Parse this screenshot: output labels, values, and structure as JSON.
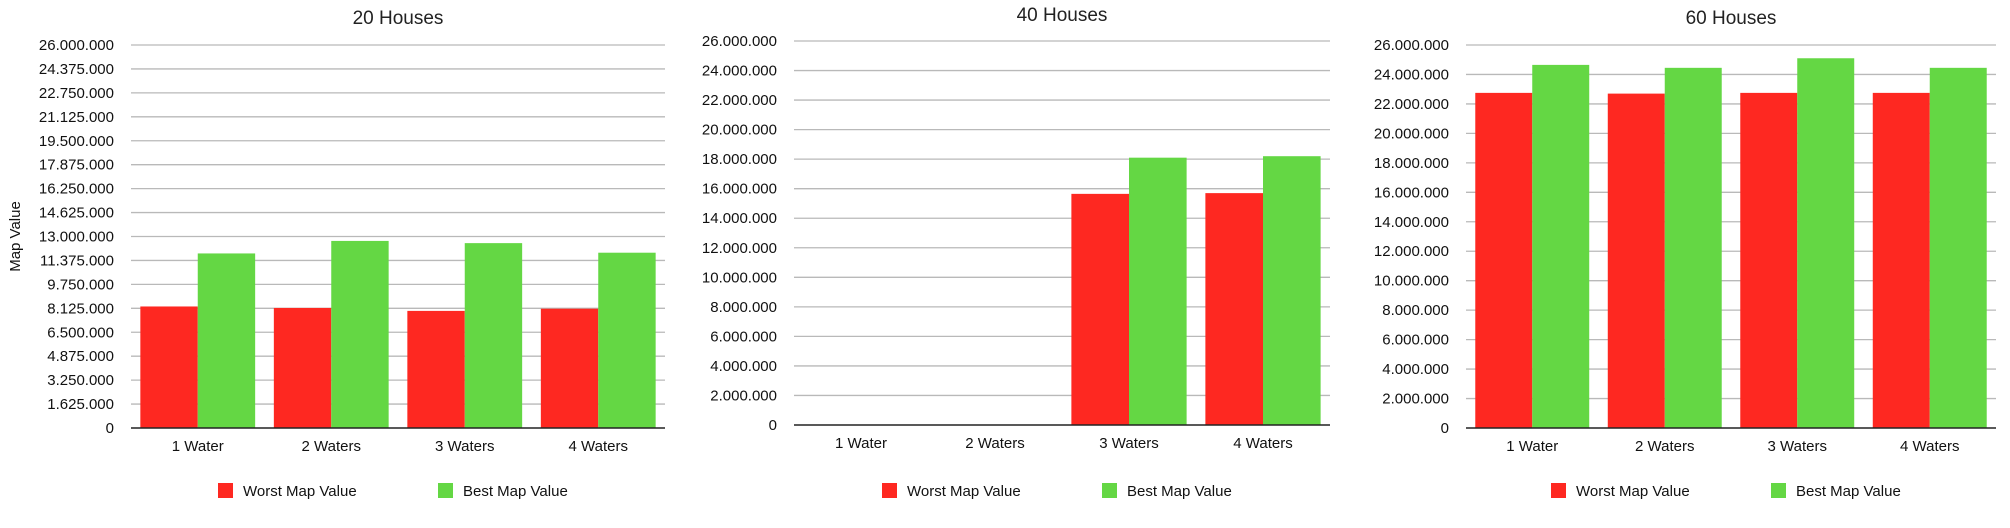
{
  "colors": {
    "worst": "#fe2821",
    "best": "#64d744"
  },
  "chart_data": [
    {
      "type": "bar",
      "title": "20 Houses",
      "ylabel": "Map Value",
      "ylim": [
        0,
        26000000
      ],
      "yticks": [
        "0",
        "1.625.000",
        "3.250.000",
        "4.875.000",
        "6.500.000",
        "8.125.000",
        "9.750.000",
        "11.375.000",
        "13.000.000",
        "14.625.000",
        "16.250.000",
        "17.875.000",
        "19.500.000",
        "21.125.000",
        "22.750.000",
        "24.375.000",
        "26.000.000"
      ],
      "ytick_values": [
        0,
        1625000,
        3250000,
        4875000,
        6500000,
        8125000,
        9750000,
        11375000,
        13000000,
        14625000,
        16250000,
        17875000,
        19500000,
        21125000,
        22750000,
        24375000,
        26000000
      ],
      "categories": [
        "1 Water",
        "2 Waters",
        "3 Waters",
        "4 Waters"
      ],
      "series": [
        {
          "name": "Worst Map Value",
          "values": [
            8250000,
            8150000,
            7950000,
            8100000
          ]
        },
        {
          "name": "Best Map Value",
          "values": [
            11850000,
            12700000,
            12550000,
            11900000
          ]
        }
      ],
      "grid": true,
      "legend": "bottom"
    },
    {
      "type": "bar",
      "title": "40 Houses",
      "ylabel": "",
      "ylim": [
        0,
        26000000
      ],
      "yticks": [
        "0",
        "2.000.000",
        "4.000.000",
        "6.000.000",
        "8.000.000",
        "10.000.000",
        "12.000.000",
        "14.000.000",
        "16.000.000",
        "18.000.000",
        "20.000.000",
        "22.000.000",
        "24.000.000",
        "26.000.000"
      ],
      "ytick_values": [
        0,
        2000000,
        4000000,
        6000000,
        8000000,
        10000000,
        12000000,
        14000000,
        16000000,
        18000000,
        20000000,
        22000000,
        24000000,
        26000000
      ],
      "categories": [
        "1 Water",
        "2 Waters",
        "3 Waters",
        "4 Waters"
      ],
      "series": [
        {
          "name": "Worst Map Value",
          "values": [
            0,
            0,
            15650000,
            15700000
          ]
        },
        {
          "name": "Best Map Value",
          "values": [
            0,
            0,
            18100000,
            18200000
          ]
        }
      ],
      "grid": true,
      "legend": "bottom"
    },
    {
      "type": "bar",
      "title": "60 Houses",
      "ylabel": "",
      "ylim": [
        0,
        26000000
      ],
      "yticks": [
        "0",
        "2.000.000",
        "4.000.000",
        "6.000.000",
        "8.000.000",
        "10.000.000",
        "12.000.000",
        "14.000.000",
        "16.000.000",
        "18.000.000",
        "20.000.000",
        "22.000.000",
        "24.000.000",
        "26.000.000"
      ],
      "ytick_values": [
        0,
        2000000,
        4000000,
        6000000,
        8000000,
        10000000,
        12000000,
        14000000,
        16000000,
        18000000,
        20000000,
        22000000,
        24000000,
        26000000
      ],
      "categories": [
        "1 Water",
        "2 Waters",
        "3 Waters",
        "4 Waters"
      ],
      "series": [
        {
          "name": "Worst Map Value",
          "values": [
            22750000,
            22700000,
            22750000,
            22750000
          ]
        },
        {
          "name": "Best Map Value",
          "values": [
            24650000,
            24450000,
            25100000,
            24450000
          ]
        }
      ],
      "grid": true,
      "legend": "bottom"
    }
  ]
}
